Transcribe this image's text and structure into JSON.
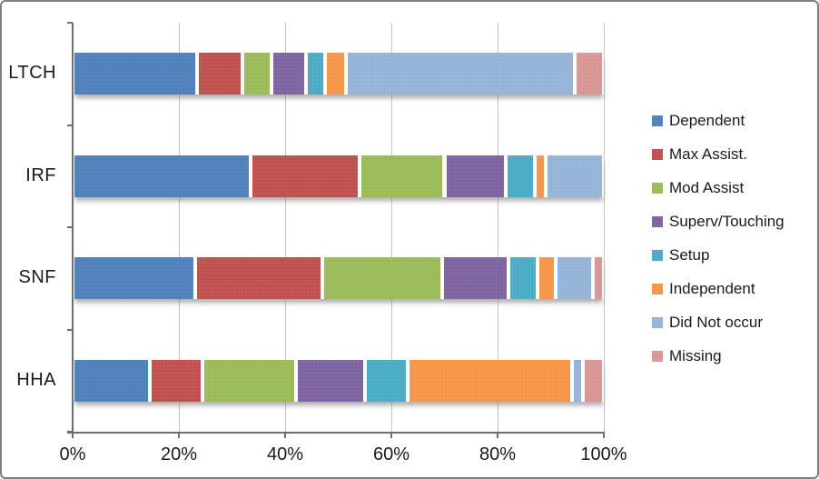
{
  "chart_data": {
    "type": "bar",
    "orientation": "horizontal-stacked",
    "title": "",
    "xlabel": "",
    "ylabel": "",
    "xlim": [
      0,
      100
    ],
    "x_tick_labels": [
      "0%",
      "20%",
      "40%",
      "60%",
      "80%",
      "100%"
    ],
    "x_tick_values": [
      0,
      20,
      40,
      60,
      80,
      100
    ],
    "grid": true,
    "legend_position": "right",
    "categories": [
      "LTCH",
      "IRF",
      "SNF",
      "HHA"
    ],
    "series": [
      {
        "name": "Dependent",
        "color": "#4F81BD",
        "values": [
          23.5,
          33.5,
          23.0,
          14.5
        ]
      },
      {
        "name": "Max Assist.",
        "color": "#C0504D",
        "values": [
          8.5,
          20.5,
          24.0,
          10.0
        ]
      },
      {
        "name": "Mod Assist",
        "color": "#9BBB59",
        "values": [
          5.5,
          16.0,
          22.5,
          17.5
        ]
      },
      {
        "name": "Superv/Touching",
        "color": "#8064A2",
        "values": [
          6.5,
          11.5,
          12.5,
          13.0
        ]
      },
      {
        "name": "Setup",
        "color": "#4BACC6",
        "values": [
          3.5,
          5.5,
          5.5,
          8.0
        ]
      },
      {
        "name": "Independent",
        "color": "#F79646",
        "values": [
          4.0,
          2.0,
          3.5,
          31.0
        ]
      },
      {
        "name": "Did Not occur",
        "color": "#95B3D7",
        "values": [
          43.0,
          11.0,
          7.0,
          2.0
        ]
      },
      {
        "name": "Missing",
        "color": "#D99694",
        "values": [
          5.5,
          0.0,
          2.0,
          4.0
        ]
      }
    ]
  },
  "colors": {
    "axis": "#6E6E6E",
    "gridline": "#C3C3C3",
    "border": "#7F7F7F",
    "text": "#1A1A1A"
  }
}
